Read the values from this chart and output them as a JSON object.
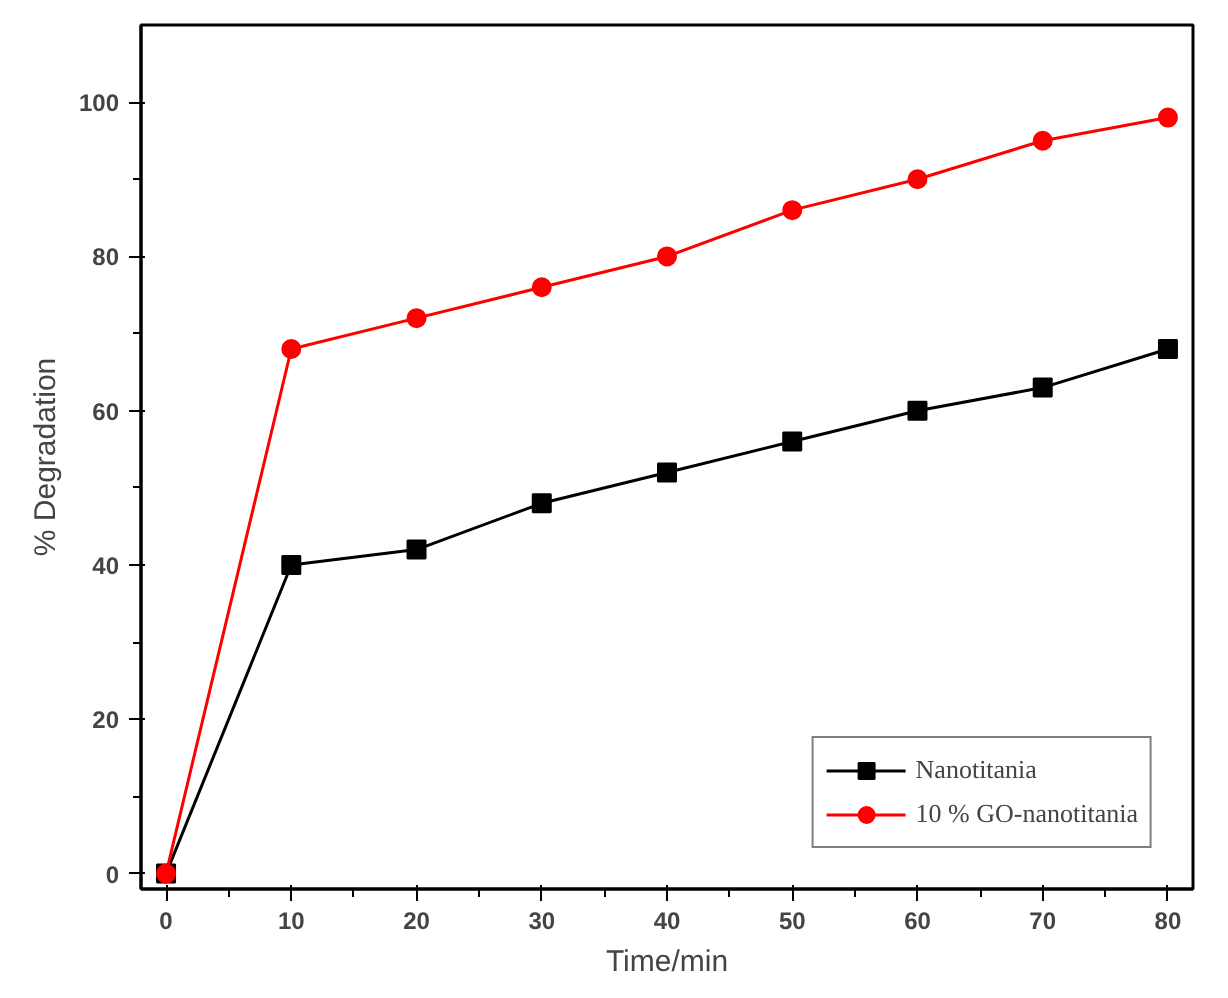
{
  "chart_data": {
    "type": "line",
    "xlabel": "Time/min",
    "ylabel": "% Degradation",
    "x": [
      0,
      10,
      20,
      30,
      40,
      50,
      60,
      70,
      80
    ],
    "series": [
      {
        "name": "Nanotitania",
        "color": "#000000",
        "marker": "square",
        "values": [
          0,
          40,
          42,
          48,
          52,
          56,
          60,
          63,
          68
        ]
      },
      {
        "name": "10 % GO-nanotitania",
        "color": "#ff0000",
        "marker": "circle",
        "values": [
          0,
          68,
          72,
          76,
          80,
          86,
          90,
          95,
          98
        ]
      }
    ],
    "xlim": [
      -2,
      82
    ],
    "ylim": [
      -2,
      110
    ],
    "xticks": [
      0,
      10,
      20,
      30,
      40,
      50,
      60,
      70,
      80
    ],
    "yticks": [
      0,
      20,
      40,
      60,
      80,
      100
    ],
    "grid": false,
    "legend": "bottom right",
    "line_style": "solid"
  }
}
